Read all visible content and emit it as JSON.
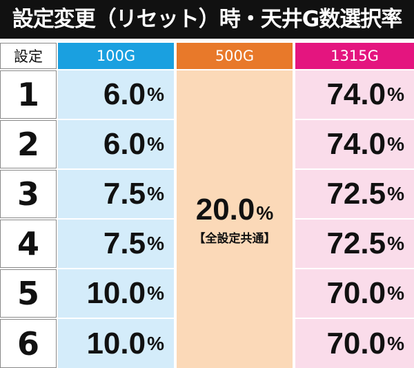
{
  "header": {
    "title": "設定変更（リセット）時・天井G数選択率"
  },
  "table": {
    "columns": [
      "設定",
      "100G",
      "500G",
      "1315G"
    ],
    "rows": [
      [
        "1",
        "6.0%",
        "74.0%"
      ],
      [
        "2",
        "6.0%",
        "74.0%"
      ],
      [
        "3",
        "7.5%",
        "72.5%"
      ],
      [
        "4",
        "7.5%",
        "72.5%"
      ],
      [
        "5",
        "10.0%",
        "70.0%"
      ],
      [
        "6",
        "10.0%",
        "70.0%"
      ]
    ],
    "shared": {
      "value": "20.0%",
      "note": "【全設定共通】"
    }
  }
}
